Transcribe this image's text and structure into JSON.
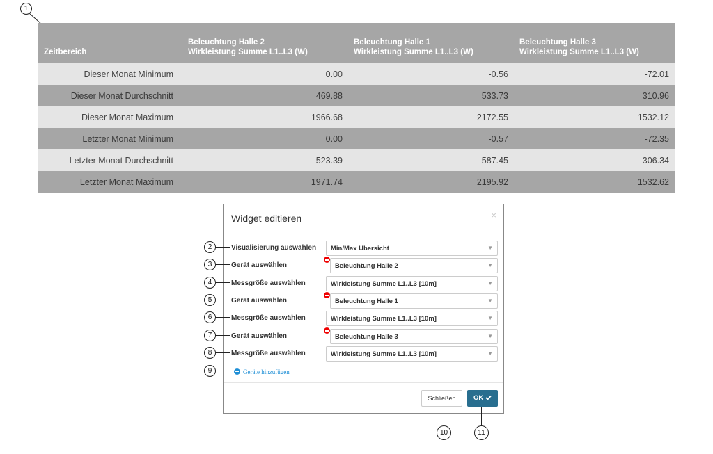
{
  "table": {
    "headers": [
      "Zeitbereich",
      "Beleuchtung Halle 2\nWirkleistung Summe L1..L3 (W)",
      "Beleuchtung Halle 1\nWirkleistung Summe L1..L3 (W)",
      "Beleuchtung Halle 3\nWirkleistung Summe L1..L3 (W)"
    ],
    "header_lines": [
      {
        "l1": "",
        "l2": "Zeitbereich"
      },
      {
        "l1": "Beleuchtung Halle 2",
        "l2": "Wirkleistung Summe L1..L3 (W)"
      },
      {
        "l1": "Beleuchtung Halle 1",
        "l2": "Wirkleistung Summe L1..L3 (W)"
      },
      {
        "l1": "Beleuchtung Halle 3",
        "l2": "Wirkleistung Summe L1..L3 (W)"
      }
    ],
    "rows": [
      [
        "Dieser Monat Minimum",
        "0.00",
        "-0.56",
        "-72.01"
      ],
      [
        "Dieser Monat Durchschnitt",
        "469.88",
        "533.73",
        "310.96"
      ],
      [
        "Dieser Monat Maximum",
        "1966.68",
        "2172.55",
        "1532.12"
      ],
      [
        "Letzter Monat Minimum",
        "0.00",
        "-0.57",
        "-72.35"
      ],
      [
        "Letzter Monat Durchschnitt",
        "523.39",
        "587.45",
        "306.34"
      ],
      [
        "Letzter Monat Maximum",
        "1971.74",
        "2195.92",
        "1532.62"
      ]
    ]
  },
  "modal": {
    "title": "Widget editieren",
    "close_glyph": "×",
    "fields": [
      {
        "label": "Visualisierung auswählen",
        "value": "Min/Max Übersicht",
        "removable": false
      },
      {
        "label": "Gerät auswählen",
        "value": "Beleuchtung Halle 2",
        "removable": true
      },
      {
        "label": "Messgröße auswählen",
        "value": "Wirkleistung Summe L1..L3 [10m]",
        "removable": false
      },
      {
        "label": "Gerät auswählen",
        "value": "Beleuchtung Halle 1",
        "removable": true
      },
      {
        "label": "Messgröße auswählen",
        "value": "Wirkleistung Summe L1..L3 [10m]",
        "removable": false
      },
      {
        "label": "Gerät auswählen",
        "value": "Beleuchtung Halle 3",
        "removable": true
      },
      {
        "label": "Messgröße auswählen",
        "value": "Wirkleistung Summe L1..L3 [10m]",
        "removable": false
      }
    ],
    "add_devices_label": "Geräte hinzufügen",
    "close_button_label": "Schließen",
    "ok_button_label": "OK",
    "ok_icon": "check-icon"
  },
  "callouts": [
    "1",
    "2",
    "3",
    "4",
    "5",
    "6",
    "7",
    "8",
    "9",
    "10",
    "11"
  ],
  "colors": {
    "header_bg": "#a6a6a6",
    "row_light": "#e5e5e5",
    "row_dark": "#a6a6a6",
    "ok_button": "#286e8f",
    "remove_icon": "#ee0000",
    "add_icon": "#1f8fd6"
  }
}
